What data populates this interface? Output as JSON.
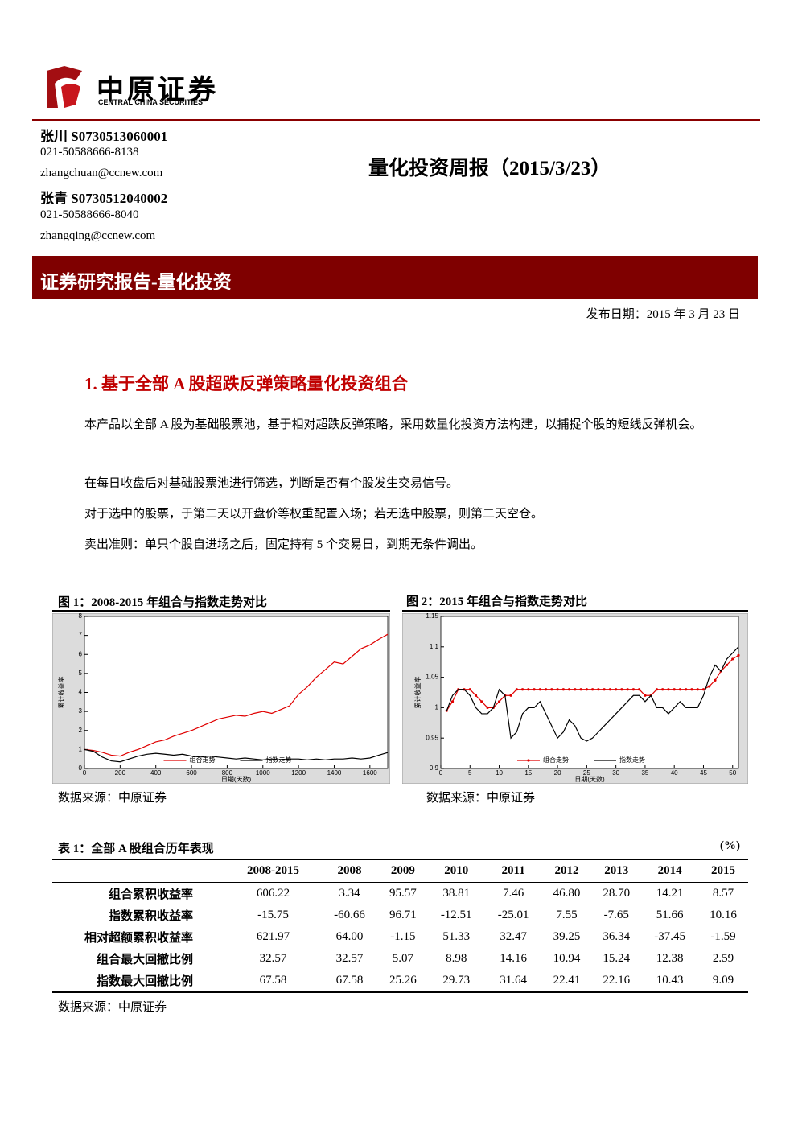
{
  "header": {
    "logo_cn": "中原证券",
    "logo_en": "CENTRAL CHINA SECURITIES"
  },
  "authors": [
    {
      "name": "张川 S0730513060001",
      "phone": "021-50588666-8138",
      "email": "zhangchuan@ccnew.com"
    },
    {
      "name": "张青 S0730512040002",
      "phone": "021-50588666-8040",
      "email": "zhangqing@ccnew.com"
    }
  ],
  "title": "量化投资周报（2015/3/23）",
  "banner": "证券研究报告-量化投资",
  "date": "发布日期：2015 年 3 月 23 日",
  "section": {
    "heading": "1. 基于全部 A 股超跌反弹策略量化投资组合",
    "paragraphs": [
      "本产品以全部 A 股为基础股票池，基于相对超跌反弹策略，采用数量化投资方法构建，以捕捉个股的短线反弹机会。",
      "在每日收盘后对基础股票池进行筛选，判断是否有个股发生交易信号。",
      "对于选中的股票，于第二天以开盘价等权重配置入场；若无选中股票，则第二天空仓。",
      "卖出准则：单只个股自进场之后，固定持有 5 个交易日，到期无条件调出。"
    ]
  },
  "figures": [
    {
      "caption": "图 1：2008-2015 年组合与指数走势对比",
      "source": "数据来源：中原证券"
    },
    {
      "caption": "图 2：2015 年组合与指数走势对比",
      "source": "数据来源：中原证券"
    }
  ],
  "chart_data": [
    {
      "type": "line",
      "x_label": "日期(天数)",
      "y_label": "累计收益率",
      "legend": "lower center",
      "xlim": [
        0,
        1700
      ],
      "xticks": [
        0,
        200,
        400,
        600,
        800,
        1000,
        1200,
        1400,
        1600
      ],
      "ylim": [
        0,
        8
      ],
      "yticks": [
        0,
        1,
        2,
        3,
        4,
        5,
        6,
        7,
        8
      ],
      "x": [
        0,
        50,
        100,
        150,
        200,
        250,
        300,
        350,
        400,
        450,
        500,
        550,
        600,
        650,
        700,
        750,
        800,
        850,
        900,
        950,
        1000,
        1050,
        1100,
        1150,
        1200,
        1250,
        1300,
        1350,
        1400,
        1450,
        1500,
        1550,
        1600,
        1650,
        1700
      ],
      "series": [
        {
          "name": "组合走势",
          "color": "#e00000",
          "markers": false,
          "values": [
            1,
            0.95,
            0.85,
            0.7,
            0.65,
            0.85,
            1.0,
            1.2,
            1.4,
            1.5,
            1.7,
            1.85,
            2.0,
            2.2,
            2.4,
            2.6,
            2.7,
            2.8,
            2.75,
            2.9,
            3.0,
            2.9,
            3.1,
            3.3,
            3.9,
            4.3,
            4.8,
            5.2,
            5.6,
            5.5,
            5.9,
            6.3,
            6.5,
            6.8,
            7.06
          ]
        },
        {
          "name": "指数走势",
          "color": "#000000",
          "markers": false,
          "values": [
            1,
            0.9,
            0.6,
            0.4,
            0.35,
            0.5,
            0.65,
            0.75,
            0.8,
            0.75,
            0.7,
            0.75,
            0.65,
            0.6,
            0.65,
            0.6,
            0.55,
            0.5,
            0.55,
            0.5,
            0.45,
            0.5,
            0.45,
            0.5,
            0.5,
            0.45,
            0.5,
            0.45,
            0.5,
            0.5,
            0.55,
            0.5,
            0.55,
            0.7,
            0.84
          ]
        }
      ]
    },
    {
      "type": "line",
      "x_label": "日期(天数)",
      "y_label": "累计收益率",
      "legend": "lower center",
      "xlim": [
        0,
        51
      ],
      "xticks": [
        0,
        5,
        10,
        15,
        20,
        25,
        30,
        35,
        40,
        45,
        50
      ],
      "ylim": [
        0.9,
        1.15
      ],
      "yticks": [
        0.9,
        0.95,
        1,
        1.05,
        1.1,
        1.15
      ],
      "x": [
        1,
        2,
        3,
        4,
        5,
        6,
        7,
        8,
        9,
        10,
        11,
        12,
        13,
        14,
        15,
        16,
        17,
        18,
        19,
        20,
        21,
        22,
        23,
        24,
        25,
        26,
        27,
        28,
        29,
        30,
        31,
        32,
        33,
        34,
        35,
        36,
        37,
        38,
        39,
        40,
        41,
        42,
        43,
        44,
        45,
        46,
        47,
        48,
        49,
        50,
        51
      ],
      "series": [
        {
          "name": "组合走势",
          "color": "#e00000",
          "markers": true,
          "values": [
            0.995,
            1.01,
            1.03,
            1.03,
            1.03,
            1.02,
            1.01,
            1.0,
            1.0,
            1.01,
            1.02,
            1.02,
            1.03,
            1.03,
            1.03,
            1.03,
            1.03,
            1.03,
            1.03,
            1.03,
            1.03,
            1.03,
            1.03,
            1.03,
            1.03,
            1.03,
            1.03,
            1.03,
            1.03,
            1.03,
            1.03,
            1.03,
            1.03,
            1.03,
            1.02,
            1.02,
            1.03,
            1.03,
            1.03,
            1.03,
            1.03,
            1.03,
            1.03,
            1.03,
            1.03,
            1.035,
            1.045,
            1.06,
            1.07,
            1.08,
            1.086
          ]
        },
        {
          "name": "指数走势",
          "color": "#000000",
          "markers": false,
          "values": [
            0.995,
            1.02,
            1.03,
            1.03,
            1.02,
            1.0,
            0.99,
            0.99,
            1.0,
            1.03,
            1.02,
            0.95,
            0.96,
            0.99,
            1.0,
            1.0,
            1.01,
            0.99,
            0.97,
            0.95,
            0.96,
            0.98,
            0.97,
            0.95,
            0.945,
            0.95,
            0.96,
            0.97,
            0.98,
            0.99,
            1.0,
            1.01,
            1.02,
            1.02,
            1.01,
            1.02,
            1.0,
            1.0,
            0.99,
            1.0,
            1.01,
            1.0,
            1.0,
            1.0,
            1.02,
            1.05,
            1.07,
            1.06,
            1.08,
            1.09,
            1.1
          ]
        }
      ]
    }
  ],
  "table": {
    "caption": "表 1：全部 A 股组合历年表现",
    "unit": "(%)",
    "columns": [
      "2008-2015",
      "2008",
      "2009",
      "2010",
      "2011",
      "2012",
      "2013",
      "2014",
      "2015"
    ],
    "rows": [
      {
        "label": "组合累积收益率",
        "cells": [
          "606.22",
          "3.34",
          "95.57",
          "38.81",
          "7.46",
          "46.80",
          "28.70",
          "14.21",
          "8.57"
        ]
      },
      {
        "label": "指数累积收益率",
        "cells": [
          "-15.75",
          "-60.66",
          "96.71",
          "-12.51",
          "-25.01",
          "7.55",
          "-7.65",
          "51.66",
          "10.16"
        ]
      },
      {
        "label": "相对超额累积收益率",
        "cells": [
          "621.97",
          "64.00",
          "-1.15",
          "51.33",
          "32.47",
          "39.25",
          "36.34",
          "-37.45",
          "-1.59"
        ]
      },
      {
        "label": "组合最大回撤比例",
        "cells": [
          "32.57",
          "32.57",
          "5.07",
          "8.98",
          "14.16",
          "10.94",
          "15.24",
          "12.38",
          "2.59"
        ]
      },
      {
        "label": "指数最大回撤比例",
        "cells": [
          "67.58",
          "67.58",
          "25.26",
          "29.73",
          "31.64",
          "22.41",
          "22.16",
          "10.43",
          "9.09"
        ]
      }
    ],
    "source": "数据来源：中原证券"
  }
}
